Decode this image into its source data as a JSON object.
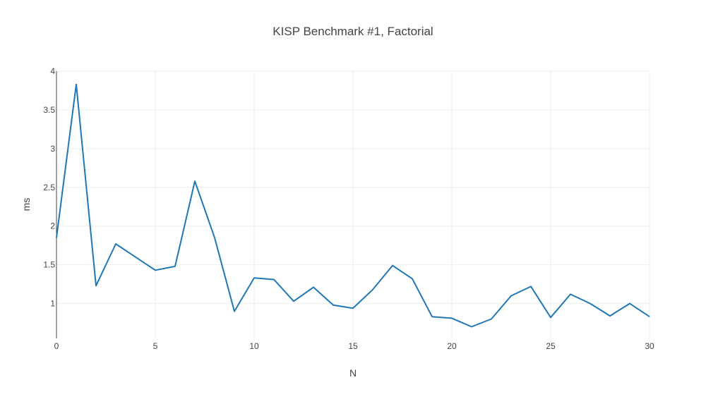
{
  "chart_data": {
    "type": "line",
    "title": "KISP Benchmark #1, Factorial",
    "xlabel": "N",
    "ylabel": "ms",
    "xlim": [
      0,
      30
    ],
    "ylim": [
      0.55,
      4.0
    ],
    "x_ticks": [
      0,
      5,
      10,
      15,
      20,
      25,
      30
    ],
    "x_tick_labels": [
      "0",
      "5",
      "10",
      "15",
      "20",
      "25",
      "30"
    ],
    "y_ticks": [
      1,
      1.5,
      2,
      2.5,
      3,
      3.5,
      4
    ],
    "y_tick_labels": [
      "1",
      "1.5",
      "2",
      "2.5",
      "3",
      "3.5",
      "4"
    ],
    "grid": true,
    "series": [
      {
        "color": "#1f77b4",
        "x": [
          0,
          1,
          2,
          3,
          4,
          5,
          6,
          7,
          8,
          9,
          10,
          11,
          12,
          13,
          14,
          15,
          16,
          17,
          18,
          19,
          20,
          21,
          22,
          23,
          24,
          25,
          26,
          27,
          28,
          29,
          30
        ],
        "y": [
          1.85,
          3.83,
          1.23,
          1.77,
          1.6,
          1.43,
          1.48,
          2.58,
          1.85,
          0.9,
          1.33,
          1.31,
          1.03,
          1.21,
          0.98,
          0.94,
          1.18,
          1.49,
          1.32,
          0.83,
          0.81,
          0.7,
          0.8,
          1.1,
          1.22,
          0.82,
          1.12,
          1.0,
          0.84,
          1.0,
          0.83
        ]
      }
    ]
  }
}
